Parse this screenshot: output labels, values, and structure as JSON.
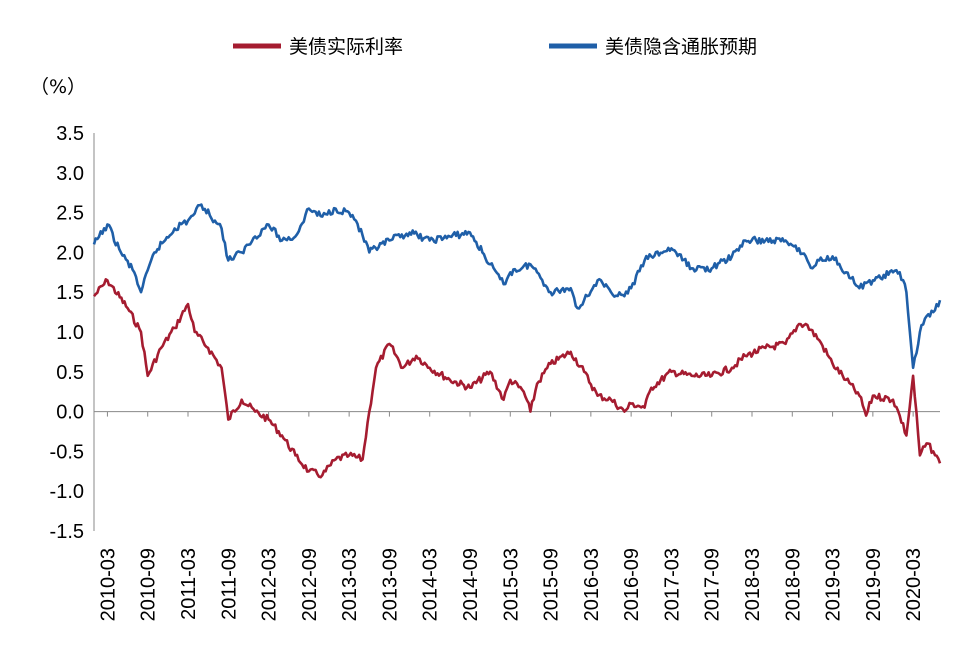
{
  "chart_data": {
    "type": "line",
    "unit_label": "（%）",
    "ylim": [
      -1.5,
      3.5
    ],
    "yticks": [
      "3.5",
      "3.0",
      "2.5",
      "2.0",
      "1.5",
      "1.0",
      "0.5",
      "0.0",
      "-0.5",
      "-1.0",
      "-1.5"
    ],
    "x_tick_labels": [
      "2010-03",
      "2010-09",
      "2011-03",
      "2011-09",
      "2012-03",
      "2012-09",
      "2013-03",
      "2013-09",
      "2014-03",
      "2014-09",
      "2015-03",
      "2015-09",
      "2016-03",
      "2016-09",
      "2017-03",
      "2017-09",
      "2018-03",
      "2018-09",
      "2019-03",
      "2019-09",
      "2020-03"
    ],
    "x_range": [
      "2010-01",
      "2020-07"
    ],
    "legend_position": "top",
    "grid": false,
    "series": [
      {
        "name": "美债实际利率",
        "color": "#A51C30",
        "x": [
          "2010-01",
          "2010-03",
          "2010-06",
          "2010-08",
          "2010-09",
          "2010-11",
          "2011-01",
          "2011-03",
          "2011-04",
          "2011-06",
          "2011-08",
          "2011-09",
          "2011-11",
          "2012-01",
          "2012-03",
          "2012-05",
          "2012-07",
          "2012-09",
          "2012-11",
          "2013-01",
          "2013-03",
          "2013-05",
          "2013-06",
          "2013-07",
          "2013-09",
          "2013-11",
          "2014-01",
          "2014-03",
          "2014-06",
          "2014-09",
          "2014-12",
          "2015-02",
          "2015-03",
          "2015-05",
          "2015-06",
          "2015-07",
          "2015-09",
          "2015-12",
          "2016-02",
          "2016-04",
          "2016-06",
          "2016-08",
          "2016-09",
          "2016-11",
          "2016-12",
          "2017-03",
          "2017-06",
          "2017-09",
          "2017-12",
          "2018-02",
          "2018-05",
          "2018-08",
          "2018-10",
          "2018-11",
          "2019-01",
          "2019-03",
          "2019-05",
          "2019-07",
          "2019-08",
          "2019-09",
          "2019-12",
          "2020-01",
          "2020-02",
          "2020-03",
          "2020-04",
          "2020-05",
          "2020-06",
          "2020-07"
        ],
        "values": [
          1.45,
          1.65,
          1.3,
          1.0,
          0.45,
          0.8,
          1.05,
          1.35,
          1.0,
          0.8,
          0.55,
          -0.1,
          0.15,
          0.0,
          -0.1,
          -0.3,
          -0.55,
          -0.75,
          -0.8,
          -0.6,
          -0.55,
          -0.6,
          0.0,
          0.55,
          0.85,
          0.55,
          0.7,
          0.55,
          0.4,
          0.3,
          0.5,
          0.15,
          0.4,
          0.25,
          0.0,
          0.35,
          0.6,
          0.75,
          0.5,
          0.2,
          0.15,
          0.0,
          0.1,
          0.05,
          0.3,
          0.5,
          0.45,
          0.45,
          0.55,
          0.7,
          0.8,
          0.85,
          1.1,
          1.1,
          0.9,
          0.6,
          0.4,
          0.2,
          -0.05,
          0.2,
          0.15,
          -0.05,
          -0.3,
          0.45,
          -0.55,
          -0.4,
          -0.5,
          -0.65
        ]
      },
      {
        "name": "美债隐含通胀预期",
        "color": "#1F5FA8",
        "x": [
          "2010-01",
          "2010-03",
          "2010-05",
          "2010-07",
          "2010-08",
          "2010-10",
          "2011-01",
          "2011-03",
          "2011-05",
          "2011-07",
          "2011-08",
          "2011-09",
          "2011-11",
          "2012-01",
          "2012-03",
          "2012-05",
          "2012-07",
          "2012-09",
          "2012-11",
          "2013-01",
          "2013-03",
          "2013-04",
          "2013-06",
          "2013-09",
          "2013-12",
          "2014-03",
          "2014-06",
          "2014-09",
          "2014-12",
          "2015-02",
          "2015-03",
          "2015-06",
          "2015-07",
          "2015-09",
          "2015-12",
          "2016-01",
          "2016-02",
          "2016-04",
          "2016-06",
          "2016-08",
          "2016-09",
          "2016-11",
          "2016-12",
          "2017-03",
          "2017-06",
          "2017-09",
          "2017-12",
          "2018-02",
          "2018-05",
          "2018-08",
          "2018-10",
          "2018-12",
          "2019-01",
          "2019-03",
          "2019-05",
          "2019-07",
          "2019-09",
          "2019-12",
          "2020-01",
          "2020-02",
          "2020-03",
          "2020-04",
          "2020-05",
          "2020-06",
          "2020-07"
        ],
        "values": [
          2.1,
          2.35,
          2.0,
          1.75,
          1.5,
          2.0,
          2.3,
          2.4,
          2.6,
          2.4,
          2.3,
          1.9,
          2.0,
          2.2,
          2.35,
          2.15,
          2.2,
          2.55,
          2.45,
          2.55,
          2.5,
          2.4,
          2.0,
          2.15,
          2.25,
          2.15,
          2.2,
          2.25,
          1.85,
          1.6,
          1.75,
          1.85,
          1.75,
          1.5,
          1.55,
          1.3,
          1.4,
          1.65,
          1.5,
          1.45,
          1.55,
          1.9,
          1.95,
          2.05,
          1.8,
          1.8,
          1.95,
          2.15,
          2.15,
          2.15,
          2.05,
          1.8,
          1.9,
          1.95,
          1.75,
          1.55,
          1.65,
          1.75,
          1.75,
          1.5,
          0.55,
          1.0,
          1.2,
          1.25,
          1.4
        ]
      }
    ]
  }
}
